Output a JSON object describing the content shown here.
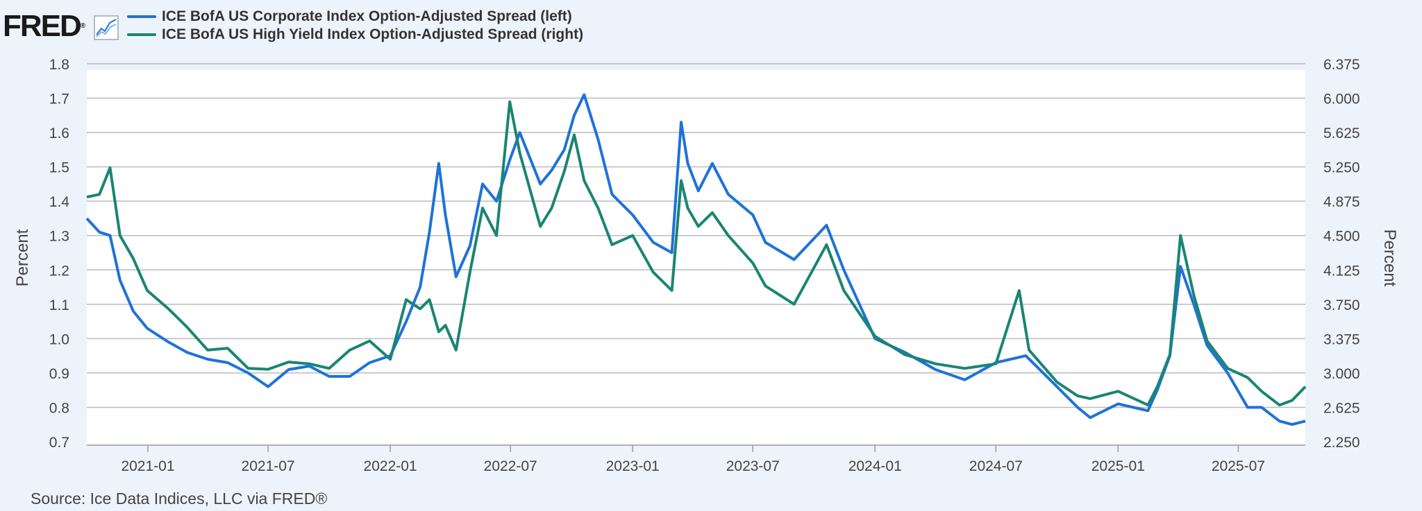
{
  "header": {
    "logo_text": "FRED",
    "logo_icon": "line-chart-icon"
  },
  "source": "Source: Ice Data Indices, LLC via FRED®",
  "chart_data": {
    "type": "line",
    "title": "",
    "xlabel": "",
    "ylabel_left": "Percent",
    "ylabel_right": "Percent",
    "x_range": [
      "2020-10-01",
      "2025-10-10"
    ],
    "x_ticks": [
      "2021-01",
      "2021-07",
      "2022-01",
      "2022-07",
      "2023-01",
      "2023-07",
      "2024-01",
      "2024-07",
      "2025-01",
      "2025-07"
    ],
    "y_left_range": [
      0.7,
      1.8
    ],
    "y_left_ticks": [
      "0.7",
      "0.8",
      "0.9",
      "1.0",
      "1.1",
      "1.2",
      "1.3",
      "1.4",
      "1.5",
      "1.6",
      "1.7",
      "1.8"
    ],
    "y_right_range": [
      2.25,
      6.375
    ],
    "y_right_ticks": [
      "2.250",
      "2.625",
      "3.000",
      "3.375",
      "3.750",
      "4.125",
      "4.500",
      "4.875",
      "5.250",
      "5.625",
      "6.000",
      "6.375"
    ],
    "grid": true,
    "legend_position": "top-left",
    "colors": {
      "left": "#1f72d8",
      "right": "#1a8573",
      "grid": "#bbbbbb"
    },
    "series": [
      {
        "name": "ICE BofA US Corporate Index Option-Adjusted Spread (left)",
        "axis": "left",
        "points": [
          [
            "2020-10-01",
            1.35
          ],
          [
            "2020-10-20",
            1.31
          ],
          [
            "2020-11-05",
            1.3
          ],
          [
            "2020-11-20",
            1.17
          ],
          [
            "2020-12-10",
            1.08
          ],
          [
            "2020-12-31",
            1.03
          ],
          [
            "2021-02-01",
            0.99
          ],
          [
            "2021-03-01",
            0.96
          ],
          [
            "2021-04-01",
            0.94
          ],
          [
            "2021-05-01",
            0.93
          ],
          [
            "2021-06-01",
            0.9
          ],
          [
            "2021-07-01",
            0.86
          ],
          [
            "2021-08-01",
            0.91
          ],
          [
            "2021-09-01",
            0.92
          ],
          [
            "2021-10-01",
            0.89
          ],
          [
            "2021-11-01",
            0.89
          ],
          [
            "2021-12-01",
            0.93
          ],
          [
            "2022-01-01",
            0.95
          ],
          [
            "2022-01-25",
            1.05
          ],
          [
            "2022-02-15",
            1.15
          ],
          [
            "2022-03-01",
            1.31
          ],
          [
            "2022-03-15",
            1.51
          ],
          [
            "2022-03-25",
            1.36
          ],
          [
            "2022-04-10",
            1.18
          ],
          [
            "2022-05-01",
            1.27
          ],
          [
            "2022-05-20",
            1.45
          ],
          [
            "2022-06-10",
            1.4
          ],
          [
            "2022-06-30",
            1.52
          ],
          [
            "2022-07-15",
            1.6
          ],
          [
            "2022-08-15",
            1.45
          ],
          [
            "2022-09-01",
            1.49
          ],
          [
            "2022-09-20",
            1.55
          ],
          [
            "2022-10-05",
            1.65
          ],
          [
            "2022-10-20",
            1.71
          ],
          [
            "2022-11-10",
            1.58
          ],
          [
            "2022-12-01",
            1.42
          ],
          [
            "2023-01-01",
            1.36
          ],
          [
            "2023-02-01",
            1.28
          ],
          [
            "2023-03-01",
            1.25
          ],
          [
            "2023-03-15",
            1.63
          ],
          [
            "2023-03-25",
            1.51
          ],
          [
            "2023-04-10",
            1.43
          ],
          [
            "2023-05-01",
            1.51
          ],
          [
            "2023-05-25",
            1.42
          ],
          [
            "2023-07-01",
            1.36
          ],
          [
            "2023-07-20",
            1.28
          ],
          [
            "2023-09-01",
            1.23
          ],
          [
            "2023-10-20",
            1.33
          ],
          [
            "2023-11-15",
            1.2
          ],
          [
            "2024-01-01",
            1.0
          ],
          [
            "2024-02-15",
            0.96
          ],
          [
            "2024-04-01",
            0.91
          ],
          [
            "2024-05-15",
            0.88
          ],
          [
            "2024-07-01",
            0.93
          ],
          [
            "2024-08-15",
            0.95
          ],
          [
            "2024-10-01",
            0.86
          ],
          [
            "2024-11-01",
            0.8
          ],
          [
            "2024-11-20",
            0.77
          ],
          [
            "2025-01-01",
            0.81
          ],
          [
            "2025-02-15",
            0.79
          ],
          [
            "2025-03-01",
            0.85
          ],
          [
            "2025-03-20",
            0.95
          ],
          [
            "2025-04-05",
            1.21
          ],
          [
            "2025-04-25",
            1.1
          ],
          [
            "2025-05-15",
            0.98
          ],
          [
            "2025-06-15",
            0.9
          ],
          [
            "2025-07-15",
            0.8
          ],
          [
            "2025-08-05",
            0.8
          ],
          [
            "2025-09-01",
            0.76
          ],
          [
            "2025-09-20",
            0.75
          ],
          [
            "2025-10-10",
            0.76
          ]
        ]
      },
      {
        "name": "ICE BofA US High Yield Index Option-Adjusted Spread (right)",
        "axis": "right",
        "points": [
          [
            "2020-10-01",
            4.92
          ],
          [
            "2020-10-20",
            4.95
          ],
          [
            "2020-11-05",
            5.24
          ],
          [
            "2020-11-20",
            4.5
          ],
          [
            "2020-12-10",
            4.25
          ],
          [
            "2020-12-31",
            3.9
          ],
          [
            "2021-02-01",
            3.7
          ],
          [
            "2021-03-01",
            3.5
          ],
          [
            "2021-04-01",
            3.25
          ],
          [
            "2021-05-01",
            3.27
          ],
          [
            "2021-06-01",
            3.05
          ],
          [
            "2021-07-01",
            3.04
          ],
          [
            "2021-08-01",
            3.12
          ],
          [
            "2021-09-01",
            3.1
          ],
          [
            "2021-10-01",
            3.05
          ],
          [
            "2021-11-01",
            3.25
          ],
          [
            "2021-12-01",
            3.35
          ],
          [
            "2022-01-01",
            3.15
          ],
          [
            "2022-01-25",
            3.8
          ],
          [
            "2022-02-15",
            3.7
          ],
          [
            "2022-03-01",
            3.8
          ],
          [
            "2022-03-15",
            3.45
          ],
          [
            "2022-03-25",
            3.52
          ],
          [
            "2022-04-10",
            3.25
          ],
          [
            "2022-05-01",
            4.1
          ],
          [
            "2022-05-20",
            4.8
          ],
          [
            "2022-06-10",
            4.5
          ],
          [
            "2022-06-30",
            5.96
          ],
          [
            "2022-07-15",
            5.4
          ],
          [
            "2022-08-15",
            4.6
          ],
          [
            "2022-09-01",
            4.8
          ],
          [
            "2022-09-20",
            5.2
          ],
          [
            "2022-10-05",
            5.6
          ],
          [
            "2022-10-20",
            5.1
          ],
          [
            "2022-11-10",
            4.8
          ],
          [
            "2022-12-01",
            4.4
          ],
          [
            "2023-01-01",
            4.5
          ],
          [
            "2023-02-01",
            4.1
          ],
          [
            "2023-03-01",
            3.9
          ],
          [
            "2023-03-15",
            5.1
          ],
          [
            "2023-03-25",
            4.8
          ],
          [
            "2023-04-10",
            4.6
          ],
          [
            "2023-05-01",
            4.75
          ],
          [
            "2023-05-25",
            4.5
          ],
          [
            "2023-07-01",
            4.2
          ],
          [
            "2023-07-20",
            3.95
          ],
          [
            "2023-09-01",
            3.75
          ],
          [
            "2023-10-20",
            4.4
          ],
          [
            "2023-11-15",
            3.9
          ],
          [
            "2024-01-01",
            3.4
          ],
          [
            "2024-02-15",
            3.2
          ],
          [
            "2024-04-01",
            3.1
          ],
          [
            "2024-05-15",
            3.05
          ],
          [
            "2024-07-01",
            3.1
          ],
          [
            "2024-08-05",
            3.9
          ],
          [
            "2024-08-20",
            3.25
          ],
          [
            "2024-10-01",
            2.9
          ],
          [
            "2024-11-01",
            2.75
          ],
          [
            "2024-11-20",
            2.72
          ],
          [
            "2025-01-01",
            2.8
          ],
          [
            "2025-02-15",
            2.65
          ],
          [
            "2025-03-01",
            2.85
          ],
          [
            "2025-03-20",
            3.2
          ],
          [
            "2025-04-05",
            4.5
          ],
          [
            "2025-04-25",
            3.85
          ],
          [
            "2025-05-15",
            3.35
          ],
          [
            "2025-06-15",
            3.05
          ],
          [
            "2025-07-15",
            2.95
          ],
          [
            "2025-08-05",
            2.8
          ],
          [
            "2025-09-01",
            2.65
          ],
          [
            "2025-09-20",
            2.7
          ],
          [
            "2025-10-10",
            2.85
          ]
        ]
      }
    ]
  }
}
